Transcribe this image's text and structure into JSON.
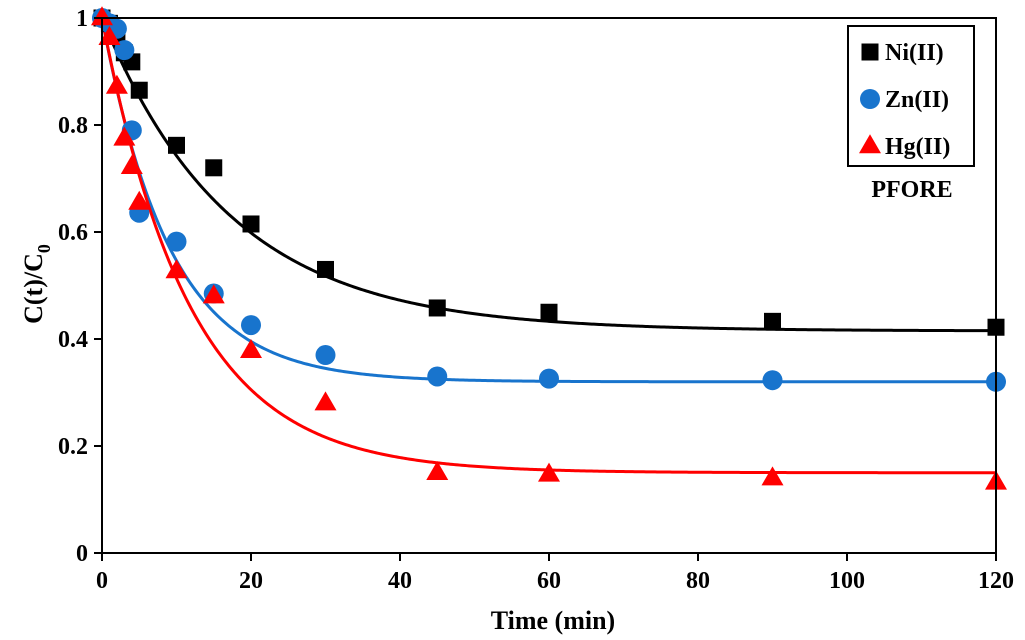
{
  "chart_data": {
    "type": "scatter",
    "xlabel": "Time (min)",
    "ylabel_main": "C(t)/C",
    "ylabel_subscript": "0",
    "xlim": [
      0,
      120
    ],
    "ylim": [
      0,
      1
    ],
    "x_ticks": [
      0,
      20,
      40,
      60,
      80,
      100,
      120
    ],
    "y_ticks": [
      0,
      0.2,
      0.4,
      0.6,
      0.8,
      1
    ],
    "y_tick_labels": [
      "0",
      "0.2",
      "0.4",
      "0.6",
      "0.8",
      "1"
    ],
    "grid": false,
    "legend_position": "top-right",
    "annotation": "PFORE",
    "series": [
      {
        "name": "Ni(II)",
        "marker": "square",
        "color": "#000000",
        "x": [
          0,
          1,
          2,
          3,
          4,
          5,
          10,
          15,
          20,
          30,
          45,
          60,
          90,
          120
        ],
        "y": [
          1.0,
          0.99,
          0.97,
          0.935,
          0.918,
          0.865,
          0.762,
          0.72,
          0.615,
          0.53,
          0.458,
          0.45,
          0.433,
          0.422
        ],
        "fit": {
          "c_eq": 0.415,
          "k": 0.058
        }
      },
      {
        "name": "Zn(II)",
        "marker": "circle",
        "color": "#1874cd",
        "x": [
          0,
          1,
          2,
          3,
          4,
          5,
          10,
          15,
          20,
          30,
          45,
          60,
          90,
          120
        ],
        "y": [
          1.0,
          0.99,
          0.98,
          0.94,
          0.79,
          0.636,
          0.582,
          0.485,
          0.426,
          0.37,
          0.33,
          0.326,
          0.323,
          0.32
        ],
        "fit": {
          "c_eq": 0.32,
          "k": 0.11
        }
      },
      {
        "name": "Hg(II)",
        "marker": "triangle",
        "color": "#ff0000",
        "x": [
          0,
          1,
          2,
          3,
          4,
          5,
          10,
          15,
          20,
          30,
          45,
          60,
          90,
          120
        ],
        "y": [
          1.0,
          0.963,
          0.872,
          0.775,
          0.722,
          0.655,
          0.527,
          0.48,
          0.378,
          0.28,
          0.15,
          0.147,
          0.14,
          0.132
        ],
        "fit": {
          "c_eq": 0.15,
          "k": 0.085
        }
      }
    ]
  }
}
